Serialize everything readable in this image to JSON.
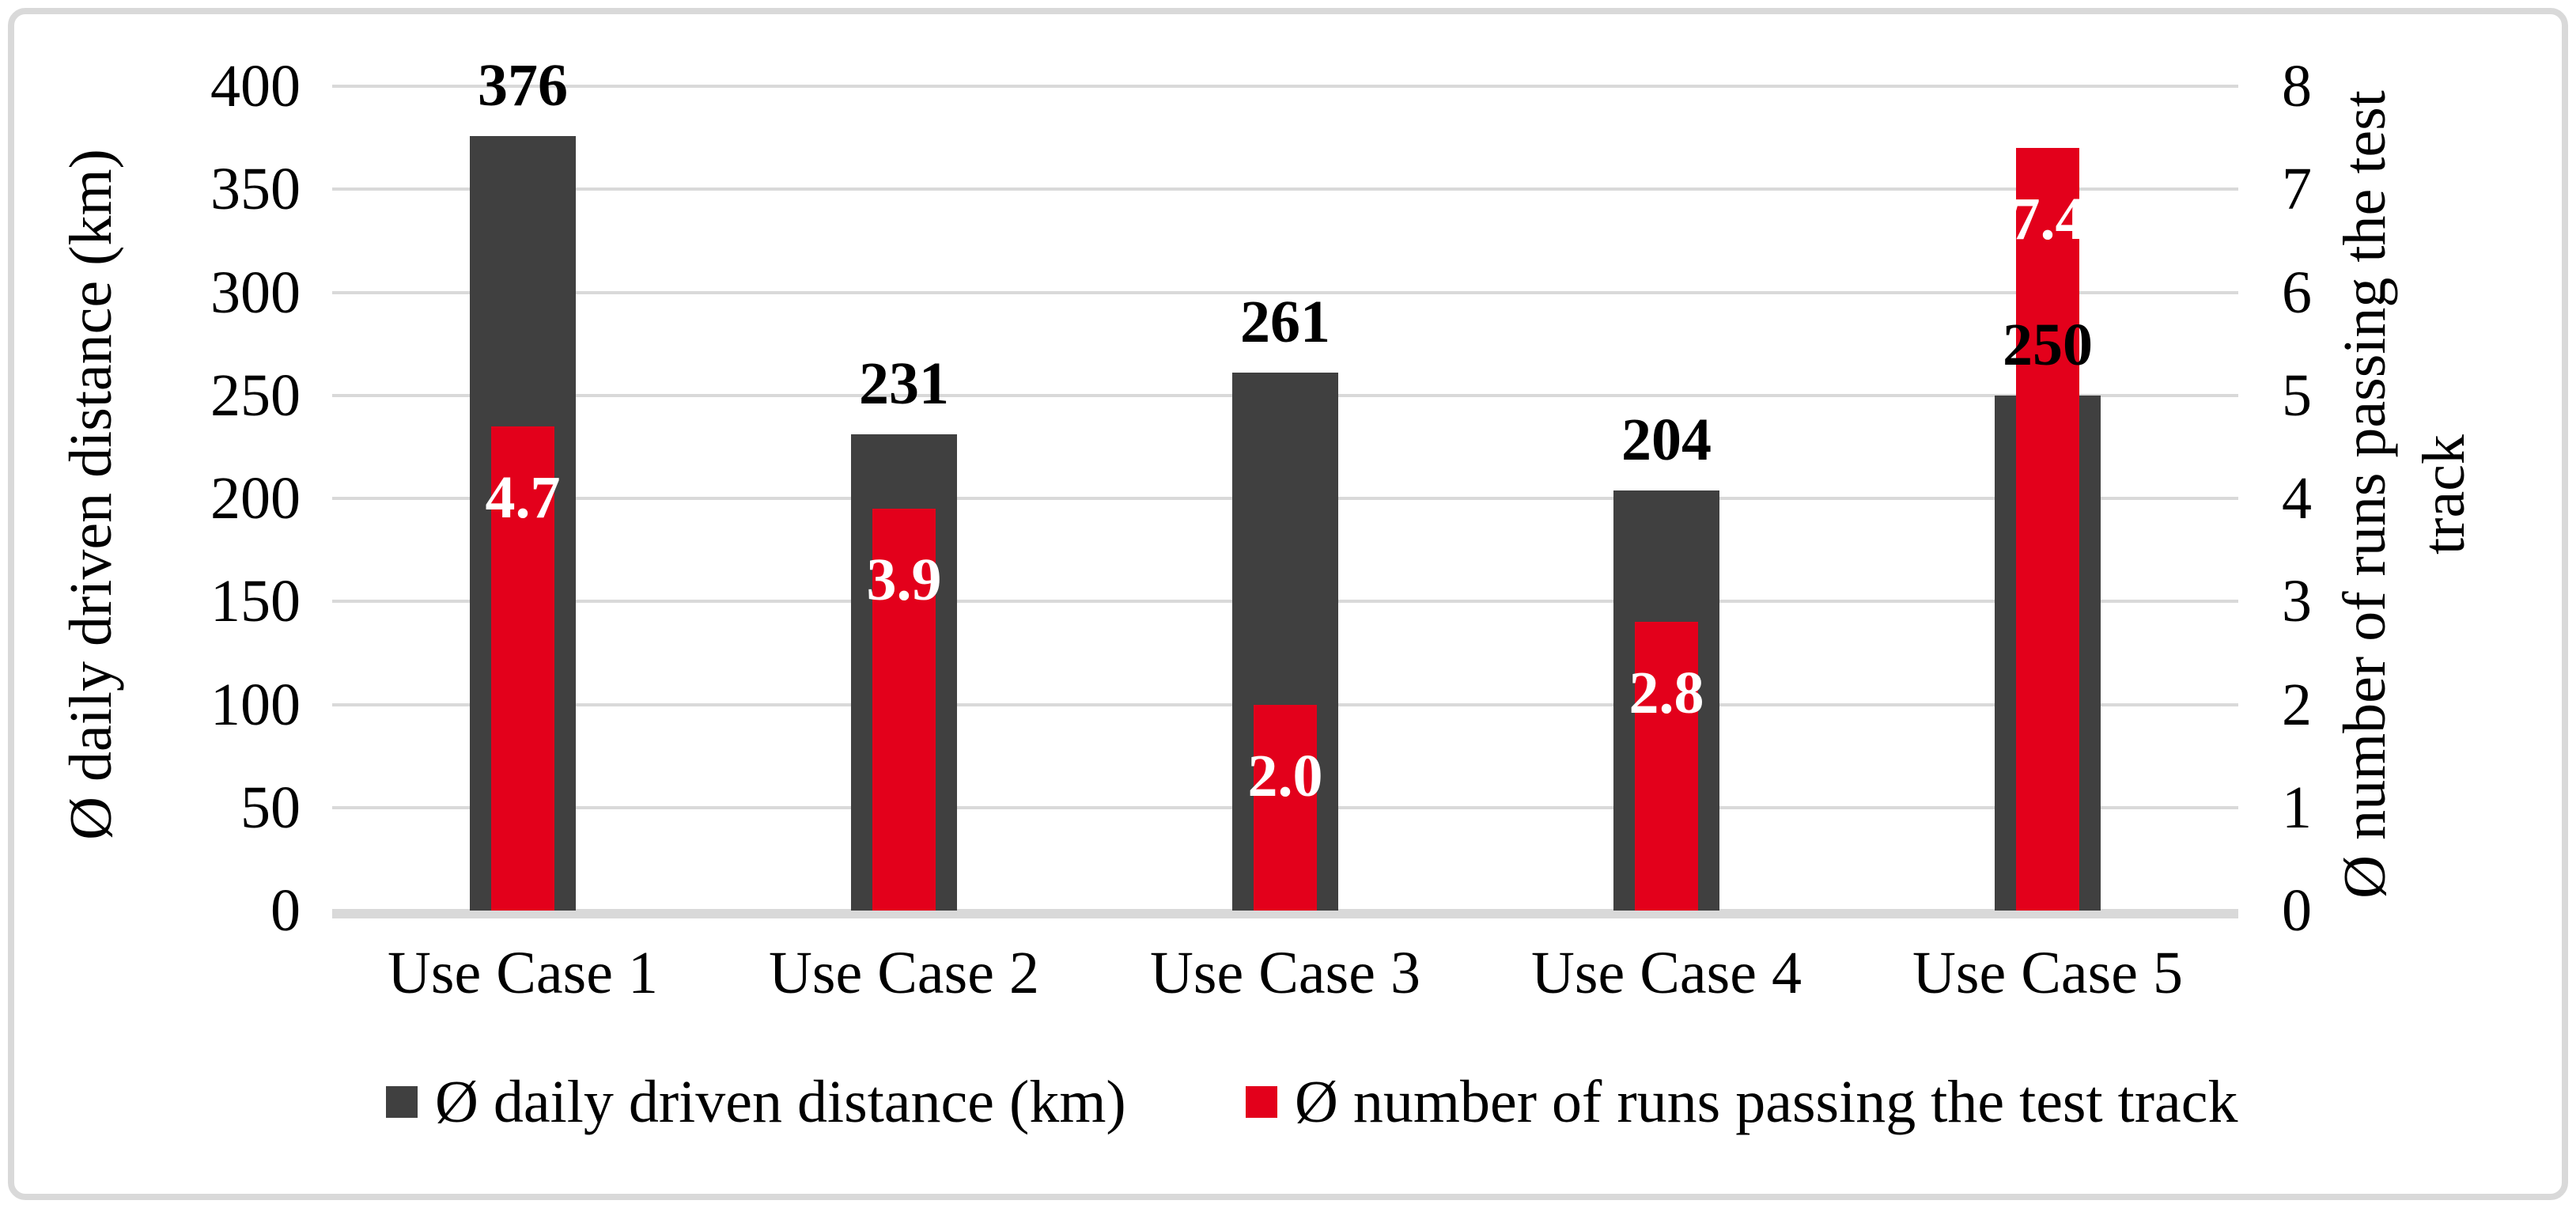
{
  "chart_data": {
    "type": "bar",
    "title": "",
    "categories": [
      "Use Case 1",
      "Use Case 2",
      "Use Case 3",
      "Use Case 4",
      "Use Case 5"
    ],
    "series": [
      {
        "name": "Ø daily driven distance (km)",
        "axis": "left",
        "color": "#404040",
        "values": [
          376,
          231,
          261,
          204,
          250
        ],
        "labels": [
          "376",
          "231",
          "261",
          "204",
          "250"
        ],
        "label_color": "#000000",
        "label_position": "above"
      },
      {
        "name": "Ø number of runs passing the test track",
        "axis": "right",
        "color": "#e3001b",
        "values": [
          4.7,
          3.9,
          2.0,
          2.8,
          7.4
        ],
        "labels": [
          "4.7",
          "3.9",
          "2.0",
          "2.8",
          "7.4"
        ],
        "label_color": "#ffffff",
        "label_position": "inside-top"
      }
    ],
    "left_axis": {
      "title": "Ø daily driven distance (km)",
      "min": 0,
      "max": 400,
      "step": 50,
      "ticks": [
        "400",
        "350",
        "300",
        "250",
        "200",
        "150",
        "100",
        "50",
        "0"
      ]
    },
    "right_axis": {
      "title": "Ø number of runs passing the test track",
      "min": 0,
      "max": 8,
      "step": 1,
      "ticks": [
        "8",
        "7",
        "6",
        "5",
        "4",
        "3",
        "2",
        "1",
        "0"
      ]
    },
    "grid": true,
    "gridline_color": "#d9d9d9",
    "legend_position": "bottom"
  },
  "legend": {
    "items": [
      {
        "label": "Ø daily driven distance (km)",
        "color": "#404040"
      },
      {
        "label": "Ø number of runs passing the test track",
        "color": "#e3001b"
      }
    ]
  }
}
